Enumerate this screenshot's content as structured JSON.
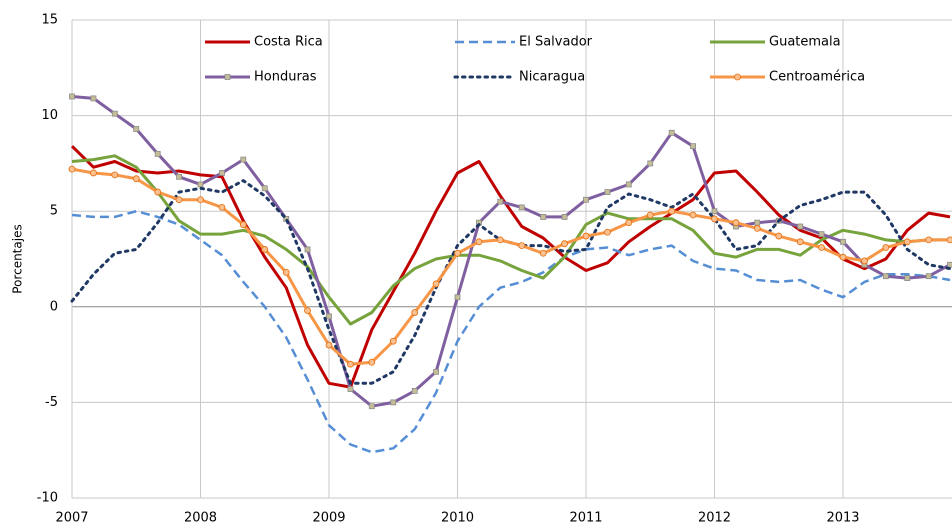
{
  "chart_data": {
    "type": "line",
    "y_label": "Porcentajes",
    "x": [
      2007,
      2007.167,
      2007.333,
      2007.5,
      2007.667,
      2007.833,
      2008,
      2008.167,
      2008.333,
      2008.5,
      2008.667,
      2008.833,
      2009,
      2009.167,
      2009.333,
      2009.5,
      2009.667,
      2009.833,
      2010,
      2010.167,
      2010.333,
      2010.5,
      2010.667,
      2010.833,
      2011,
      2011.167,
      2011.333,
      2011.5,
      2011.667,
      2011.833,
      2012,
      2012.167,
      2012.333,
      2012.5,
      2012.667,
      2012.833,
      2013,
      2013.167,
      2013.333,
      2013.5,
      2013.667,
      2013.833
    ],
    "xlim": [
      2007,
      2013.85
    ],
    "xticks": [
      2007,
      2008,
      2009,
      2010,
      2011,
      2012,
      2013
    ],
    "ylim": [
      -10,
      15
    ],
    "yticks": [
      -10,
      -5,
      0,
      5,
      10,
      15
    ],
    "grid": true,
    "legend": "top",
    "series": [
      {
        "name": "Costa Rica",
        "color": "#c00000",
        "dash": "solid",
        "values": [
          8.4,
          7.3,
          7.6,
          7.1,
          7.0,
          7.1,
          6.9,
          6.8,
          4.5,
          2.6,
          1.0,
          -2.0,
          -4.0,
          -4.2,
          -1.2,
          0.8,
          2.8,
          5.0,
          7.0,
          7.6,
          5.8,
          4.2,
          3.6,
          2.6,
          1.9,
          2.3,
          3.4,
          4.2,
          4.9,
          5.6,
          7.0,
          7.1,
          6.0,
          4.8,
          4.0,
          3.6,
          2.5,
          2.0,
          2.5,
          4.0,
          4.9,
          4.7
        ]
      },
      {
        "name": "El Salvador",
        "color": "#558ed5",
        "dash": "dashed",
        "values": [
          4.8,
          4.7,
          4.7,
          5.0,
          4.7,
          4.3,
          3.5,
          2.7,
          1.3,
          0.0,
          -1.6,
          -3.8,
          -6.2,
          -7.2,
          -7.6,
          -7.4,
          -6.4,
          -4.5,
          -1.8,
          0.0,
          1.0,
          1.3,
          1.8,
          2.6,
          3.0,
          3.1,
          2.7,
          3.0,
          3.2,
          2.4,
          2.0,
          1.9,
          1.4,
          1.3,
          1.4,
          0.9,
          0.5,
          1.3,
          1.7,
          1.7,
          1.6,
          1.4
        ]
      },
      {
        "name": "Guatemala",
        "color": "#77a33c",
        "dash": "solid",
        "values": [
          7.6,
          7.7,
          7.9,
          7.3,
          6.0,
          4.5,
          3.8,
          3.8,
          4.0,
          3.7,
          3.0,
          2.1,
          0.5,
          -0.9,
          -0.3,
          1.1,
          2.0,
          2.5,
          2.7,
          2.7,
          2.4,
          1.9,
          1.5,
          2.6,
          4.3,
          4.9,
          4.6,
          4.6,
          4.6,
          4.0,
          2.8,
          2.6,
          3.0,
          3.0,
          2.7,
          3.5,
          4.0,
          3.8,
          3.5,
          3.4,
          3.5,
          3.5
        ]
      },
      {
        "name": "Honduras",
        "color": "#7f5fa0",
        "dash": "solid",
        "marker": "square",
        "values": [
          11.0,
          10.9,
          10.1,
          9.3,
          8.0,
          6.8,
          6.4,
          7.0,
          7.7,
          6.2,
          4.6,
          3.0,
          -0.5,
          -4.3,
          -5.2,
          -5.0,
          -4.4,
          -3.4,
          0.5,
          4.4,
          5.5,
          5.2,
          4.7,
          4.7,
          5.6,
          6.0,
          6.4,
          7.5,
          9.1,
          8.4,
          5.0,
          4.2,
          4.4,
          4.5,
          4.2,
          3.8,
          3.4,
          2.2,
          1.6,
          1.5,
          1.6,
          2.2
        ]
      },
      {
        "name": "Nicaragua",
        "color": "#1f3864",
        "dash": "dotted",
        "values": [
          0.3,
          1.7,
          2.8,
          3.0,
          4.4,
          6.0,
          6.2,
          6.0,
          6.6,
          5.8,
          4.6,
          2.0,
          -1.2,
          -4.0,
          -4.0,
          -3.4,
          -1.5,
          1.0,
          3.2,
          4.3,
          3.5,
          3.2,
          3.2,
          2.9,
          3.0,
          5.2,
          5.9,
          5.6,
          5.2,
          5.9,
          4.6,
          3.0,
          3.2,
          4.5,
          5.3,
          5.6,
          6.0,
          6.0,
          4.8,
          3.0,
          2.2,
          2.0
        ]
      },
      {
        "name": "Centroamérica",
        "color": "#f79646",
        "dash": "solid",
        "marker": "circle",
        "values": [
          7.2,
          7.0,
          6.9,
          6.7,
          6.0,
          5.6,
          5.6,
          5.2,
          4.3,
          3.0,
          1.8,
          -0.2,
          -2.0,
          -3.0,
          -2.9,
          -1.8,
          -0.3,
          1.2,
          2.8,
          3.4,
          3.5,
          3.2,
          2.8,
          3.3,
          3.7,
          3.9,
          4.4,
          4.8,
          5.0,
          4.8,
          4.6,
          4.4,
          4.1,
          3.7,
          3.4,
          3.1,
          2.6,
          2.4,
          3.1,
          3.4,
          3.5,
          3.5
        ]
      }
    ]
  }
}
